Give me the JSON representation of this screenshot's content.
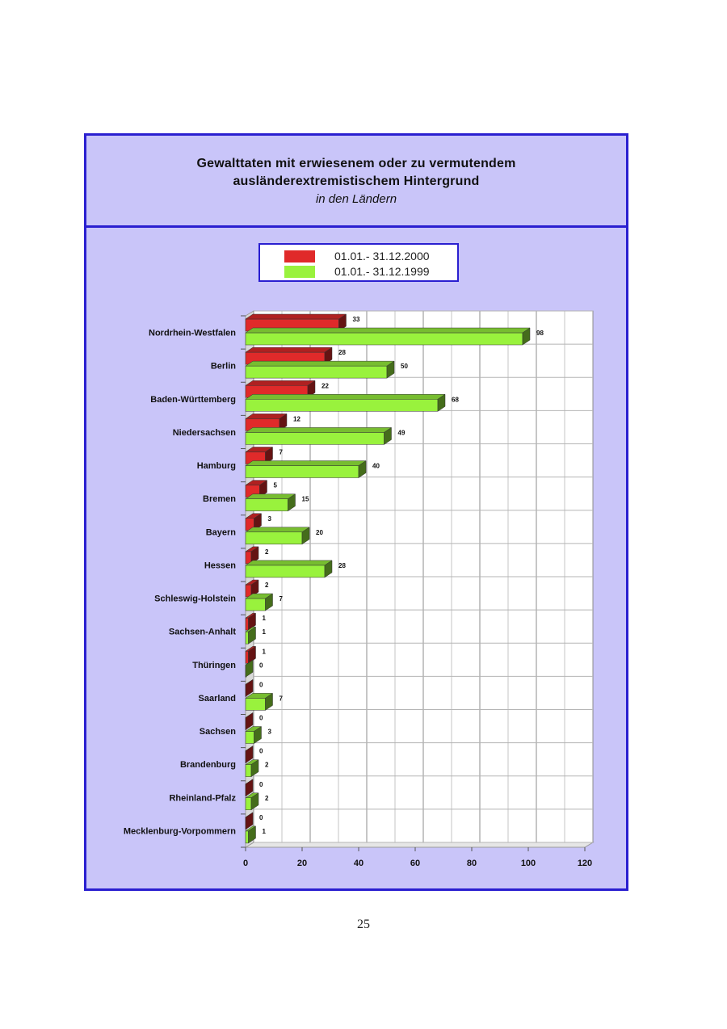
{
  "title": {
    "line1": "Gewalttaten mit erwiesenem oder zu vermutendem",
    "line2": "ausländerextremistischem Hintergrund",
    "subtitle": "in den Ländern"
  },
  "page_number": "25",
  "colors": {
    "frame_bg": "#c9c5f9",
    "frame_border": "#2a1fd0",
    "series_2000": "#e02a2a",
    "series_1999": "#99f23d"
  },
  "chart_data": {
    "type": "bar",
    "orientation": "horizontal",
    "title": "Gewalttaten mit erwiesenem oder zu vermutendem ausländerextremistischem Hintergrund in den Ländern",
    "categories": [
      "Nordrhein-Westfalen",
      "Berlin",
      "Baden-Württemberg",
      "Niedersachsen",
      "Hamburg",
      "Bremen",
      "Bayern",
      "Hessen",
      "Schleswig-Holstein",
      "Sachsen-Anhalt",
      "Thüringen",
      "Saarland",
      "Sachsen",
      "Brandenburg",
      "Rheinland-Pfalz",
      "Mecklenburg-Vorpommern"
    ],
    "series": [
      {
        "name": "01.01.- 31.12.2000",
        "color": "#e02a2a",
        "values": [
          33,
          28,
          22,
          12,
          7,
          5,
          3,
          2,
          2,
          1,
          1,
          0,
          0,
          0,
          0,
          0
        ]
      },
      {
        "name": "01.01.- 31.12.1999",
        "color": "#99f23d",
        "values": [
          98,
          50,
          68,
          49,
          40,
          15,
          20,
          28,
          7,
          1,
          0,
          7,
          3,
          2,
          2,
          1
        ]
      }
    ],
    "xlim": [
      0,
      120
    ],
    "xticks": [
      0,
      20,
      40,
      60,
      80,
      100,
      120
    ],
    "grid": true,
    "legend_position": "top"
  }
}
